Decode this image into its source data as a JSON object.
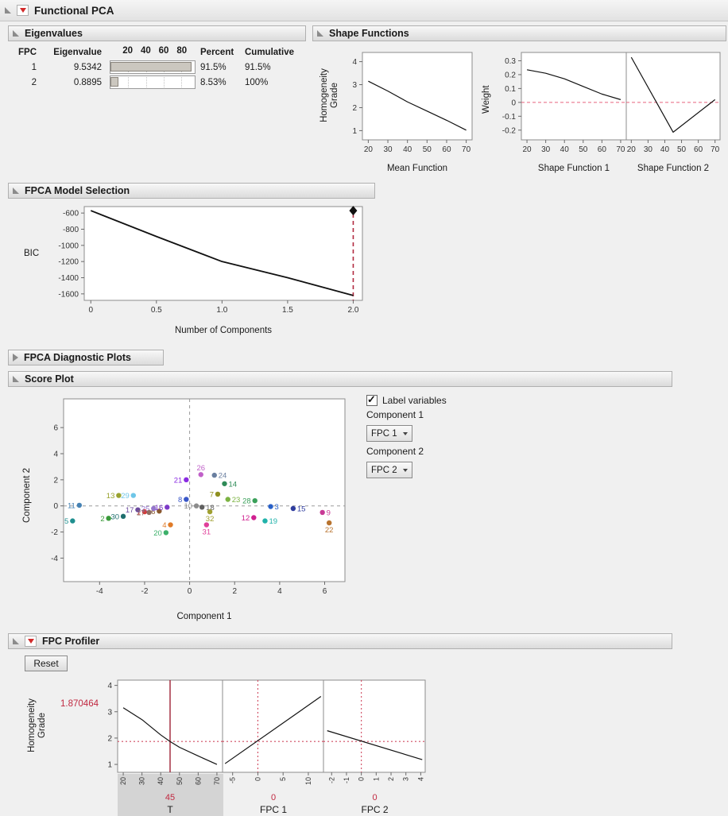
{
  "app": {
    "title": "Functional PCA"
  },
  "panels": {
    "eigenvalues": {
      "title": "Eigenvalues",
      "table": {
        "headers": {
          "fpc": "FPC",
          "eigenvalue": "Eigenvalue",
          "percent": "Percent",
          "cumulative": "Cumulative"
        },
        "bar_ticks": [
          "20",
          "40",
          "60",
          "80"
        ],
        "rows": [
          {
            "fpc": "1",
            "eigenvalue": "9.5342",
            "bar_pct": 96,
            "percent": "91.5%",
            "cumulative": "91.5%"
          },
          {
            "fpc": "2",
            "eigenvalue": "0.8895",
            "bar_pct": 9,
            "percent": "8.53%",
            "cumulative": "100%"
          }
        ]
      }
    },
    "shape_functions": {
      "title": "Shape Functions",
      "y_label_line1": "Homogeneity",
      "y_label_line2": "Grade",
      "weight_label": "Weight"
    },
    "model_selection": {
      "title": "FPCA Model Selection",
      "y_label": "BIC"
    },
    "diagnostic": {
      "title": "FPCA Diagnostic Plots"
    },
    "score_plot": {
      "title": "Score Plot",
      "y_label": "Component 2",
      "controls": {
        "label_variables": "Label variables",
        "checked": true,
        "component1_label": "Component 1",
        "component1_value": "FPC 1",
        "component2_label": "Component 2",
        "component2_value": "FPC 2"
      }
    },
    "profiler": {
      "title": "FPC Profiler",
      "reset_label": "Reset",
      "y_label_line1": "Homogeneity",
      "y_label_line2": "Grade",
      "current_value": "1.870464",
      "factors": [
        {
          "name": "T",
          "current": "45",
          "selected": true
        },
        {
          "name": "FPC 1",
          "current": "0",
          "selected": false
        },
        {
          "name": "FPC 2",
          "current": "0",
          "selected": false
        }
      ]
    }
  },
  "chart_data": [
    {
      "id": "mean-function",
      "type": "line",
      "xlabel": "Mean Function",
      "xlim": [
        17,
        73
      ],
      "ylim": [
        0.6,
        4.4
      ],
      "xticks": {
        "values": [
          20,
          30,
          40,
          50,
          60,
          70
        ]
      },
      "yticks": {
        "values": [
          1,
          2,
          3,
          4
        ]
      },
      "series": [
        {
          "color": "#111111",
          "width": 1.2,
          "x": [
            20,
            30,
            40,
            50,
            60,
            70
          ],
          "y": [
            3.15,
            2.72,
            2.25,
            1.85,
            1.45,
            1.02
          ]
        }
      ]
    },
    {
      "id": "shape-function-1",
      "type": "line",
      "xlabel": "Shape Function 1",
      "xlim": [
        17,
        73
      ],
      "ylim": [
        -0.27,
        0.36
      ],
      "xticks": {
        "values": [
          20,
          30,
          40,
          50,
          60,
          70
        ]
      },
      "yticks": {
        "values": [
          -0.2,
          -0.1,
          0,
          0.1,
          0.2,
          0.3
        ],
        "labels": [
          "-0.2",
          "-0.1",
          "0",
          "0.1",
          "0.2",
          "0.3"
        ]
      },
      "reflines": [
        {
          "orient": "h",
          "at": 0,
          "color": "#e8637e",
          "dash": "4,3",
          "width": 1
        }
      ],
      "series": [
        {
          "color": "#111111",
          "width": 1.2,
          "x": [
            20,
            30,
            40,
            50,
            60,
            70
          ],
          "y": [
            0.235,
            0.21,
            0.17,
            0.115,
            0.06,
            0.02
          ]
        }
      ]
    },
    {
      "id": "shape-function-2",
      "type": "line",
      "xlabel": "Shape Function 2",
      "xlim": [
        17,
        73
      ],
      "ylim": [
        -0.27,
        0.36
      ],
      "xticks": {
        "values": [
          20,
          30,
          40,
          50,
          60,
          70
        ]
      },
      "reflines": [
        {
          "orient": "h",
          "at": 0,
          "color": "#e8637e",
          "dash": "4,3",
          "width": 1
        }
      ],
      "series": [
        {
          "color": "#111111",
          "width": 1.2,
          "x": [
            20,
            45,
            70
          ],
          "y": [
            0.325,
            -0.215,
            0.02
          ]
        }
      ]
    },
    {
      "id": "bic-plot",
      "type": "line",
      "xlabel": "Number of Components",
      "xlim": [
        -0.05,
        2.07
      ],
      "ylim": [
        -1680,
        -520
      ],
      "xticks": {
        "values": [
          0,
          0.5,
          1,
          1.5,
          2
        ],
        "labels": [
          "0",
          "0.5",
          "1.0",
          "1.5",
          "2.0"
        ]
      },
      "yticks": {
        "values": [
          -600,
          -800,
          -1000,
          -1200,
          -1400,
          -1600
        ]
      },
      "reflines": [
        {
          "orient": "v",
          "at": 2,
          "color": "#b22a40",
          "dash": "5,4",
          "width": 1.6
        }
      ],
      "series": [
        {
          "color": "#111111",
          "width": 1.8,
          "x": [
            0,
            0.5,
            1,
            1.5,
            2
          ],
          "y": [
            -570,
            -890,
            -1200,
            -1400,
            -1620
          ]
        }
      ],
      "markers": [
        {
          "x": 2,
          "y": -570,
          "shape": "diamond",
          "color": "#111111",
          "size": 6
        }
      ]
    },
    {
      "id": "score-plot",
      "type": "scatter",
      "xlabel": "Component 1",
      "xlim": [
        -5.6,
        6.9
      ],
      "ylim": [
        -5.8,
        8.2
      ],
      "xticks": {
        "values": [
          -4,
          -2,
          0,
          2,
          4,
          6
        ]
      },
      "yticks": {
        "values": [
          -4,
          -2,
          0,
          2,
          4,
          6
        ]
      },
      "reflines": [
        {
          "orient": "v",
          "at": 0,
          "color": "#9a9a9a",
          "dash": "4,4",
          "width": 1
        },
        {
          "orient": "h",
          "at": 0,
          "color": "#9a9a9a",
          "dash": "4,4",
          "width": 1
        }
      ],
      "points": [
        {
          "label": "1",
          "x": -2.0,
          "y": -0.45,
          "color": "#d43a3a",
          "side": "left"
        },
        {
          "label": "2",
          "x": -3.6,
          "y": -0.95,
          "color": "#3a9a3a",
          "side": "left"
        },
        {
          "label": "3",
          "x": 3.6,
          "y": -0.05,
          "color": "#2860c8",
          "side": "right"
        },
        {
          "label": "4",
          "x": -0.85,
          "y": -1.45,
          "color": "#e07b28",
          "side": "left"
        },
        {
          "label": "5",
          "x": -5.2,
          "y": -1.15,
          "color": "#1f8f8f",
          "side": "left"
        },
        {
          "label": "6",
          "x": -1.35,
          "y": -0.4,
          "color": "#8a5a2e",
          "side": "left"
        },
        {
          "label": "7",
          "x": 1.25,
          "y": 0.9,
          "color": "#8f8f1f",
          "side": "left"
        },
        {
          "label": "8",
          "x": -0.15,
          "y": 0.5,
          "color": "#3a57c8",
          "side": "left"
        },
        {
          "label": "9",
          "x": 5.9,
          "y": -0.5,
          "color": "#c83a96",
          "side": "right"
        },
        {
          "label": "10",
          "x": 0.3,
          "y": 0.0,
          "color": "#8c8c8c",
          "side": "left"
        },
        {
          "label": "11",
          "x": -4.9,
          "y": 0.05,
          "color": "#4682b4",
          "side": "left"
        },
        {
          "label": "12",
          "x": 2.85,
          "y": -0.9,
          "color": "#d02090",
          "side": "left"
        },
        {
          "label": "13",
          "x": -3.15,
          "y": 0.8,
          "color": "#9aa22e",
          "side": "left"
        },
        {
          "label": "14",
          "x": 1.55,
          "y": 1.7,
          "color": "#2e8b57",
          "side": "right"
        },
        {
          "label": "15",
          "x": 4.6,
          "y": -0.2,
          "color": "#2f3d9e",
          "side": "right"
        },
        {
          "label": "16",
          "x": -1.0,
          "y": -0.1,
          "color": "#7d3ac8",
          "side": "left"
        },
        {
          "label": "17",
          "x": -2.3,
          "y": -0.3,
          "color": "#6b4a9e",
          "side": "left"
        },
        {
          "label": "18",
          "x": 0.55,
          "y": -0.1,
          "color": "#5f5f5f",
          "side": "right"
        },
        {
          "label": "19",
          "x": 3.35,
          "y": -1.15,
          "color": "#20b2aa",
          "side": "right"
        },
        {
          "label": "20",
          "x": -1.05,
          "y": -2.05,
          "color": "#3cb06a",
          "side": "left"
        },
        {
          "label": "21",
          "x": -0.15,
          "y": 2.0,
          "color": "#8a2be2",
          "side": "left"
        },
        {
          "label": "22",
          "x": 6.2,
          "y": -1.3,
          "color": "#b8732e",
          "side": "below"
        },
        {
          "label": "23",
          "x": 1.7,
          "y": 0.5,
          "color": "#7cb342",
          "side": "right"
        },
        {
          "label": "24",
          "x": 1.1,
          "y": 2.35,
          "color": "#6a7fa0",
          "side": "right"
        },
        {
          "label": "25",
          "x": -1.6,
          "y": -0.2,
          "color": "#9575cd",
          "side": "left"
        },
        {
          "label": "26",
          "x": 0.5,
          "y": 2.4,
          "color": "#c060c8",
          "side": "above"
        },
        {
          "label": "27",
          "x": -1.8,
          "y": -0.5,
          "color": "#8d6e63",
          "side": "left"
        },
        {
          "label": "28",
          "x": 2.9,
          "y": 0.4,
          "color": "#3aa05a",
          "side": "left"
        },
        {
          "label": "29",
          "x": -2.5,
          "y": 0.8,
          "color": "#6ec6e8",
          "side": "left"
        },
        {
          "label": "30",
          "x": -2.95,
          "y": -0.8,
          "color": "#1f6e6e",
          "side": "left"
        },
        {
          "label": "31",
          "x": 0.75,
          "y": -1.45,
          "color": "#e0409a",
          "side": "below"
        },
        {
          "label": "32",
          "x": 0.9,
          "y": -0.45,
          "color": "#a0a030",
          "side": "below"
        }
      ]
    },
    {
      "id": "profiler-t",
      "type": "line",
      "xlim": [
        17,
        73
      ],
      "ylim": [
        0.7,
        4.2
      ],
      "xticks": {
        "values": [
          20,
          30,
          40,
          50,
          60,
          70
        ],
        "rotated": true
      },
      "yticks": {
        "values": [
          1,
          2,
          3,
          4
        ]
      },
      "reflines": [
        {
          "orient": "v",
          "at": 45,
          "color": "#9e2235",
          "width": 1.4
        },
        {
          "orient": "h",
          "at": 1.870464,
          "color": "#d04a60",
          "dash": "2,3",
          "width": 1.1
        }
      ],
      "series": [
        {
          "color": "#111111",
          "width": 1.2,
          "x": [
            20,
            30,
            40,
            45,
            50,
            60,
            70
          ],
          "y": [
            3.15,
            2.7,
            2.12,
            1.87,
            1.65,
            1.32,
            1.0
          ]
        }
      ]
    },
    {
      "id": "profiler-fpc1",
      "type": "line",
      "xlim": [
        -7,
        13
      ],
      "ylim": [
        0.7,
        4.2
      ],
      "xticks": {
        "values": [
          -5,
          0,
          5,
          10
        ],
        "rotated": true
      },
      "reflines": [
        {
          "orient": "v",
          "at": 0,
          "color": "#d04a60",
          "dash": "2,3",
          "width": 1.1
        },
        {
          "orient": "h",
          "at": 1.870464,
          "color": "#d04a60",
          "dash": "2,3",
          "width": 1.1
        }
      ],
      "series": [
        {
          "color": "#111111",
          "width": 1.2,
          "x": [
            -6.5,
            12.5
          ],
          "y": [
            1.03,
            3.58
          ]
        }
      ]
    },
    {
      "id": "profiler-fpc2",
      "type": "line",
      "xlim": [
        -2.55,
        4.3
      ],
      "ylim": [
        0.7,
        4.2
      ],
      "xticks": {
        "values": [
          -2,
          -1,
          0,
          1,
          2,
          3,
          4
        ],
        "rotated": true
      },
      "reflines": [
        {
          "orient": "v",
          "at": 0,
          "color": "#d04a60",
          "dash": "2,3",
          "width": 1.1
        },
        {
          "orient": "h",
          "at": 1.870464,
          "color": "#d04a60",
          "dash": "2,3",
          "width": 1.1
        }
      ],
      "series": [
        {
          "color": "#111111",
          "width": 1.2,
          "x": [
            -2.3,
            4.1
          ],
          "y": [
            2.28,
            1.18
          ]
        }
      ]
    }
  ]
}
